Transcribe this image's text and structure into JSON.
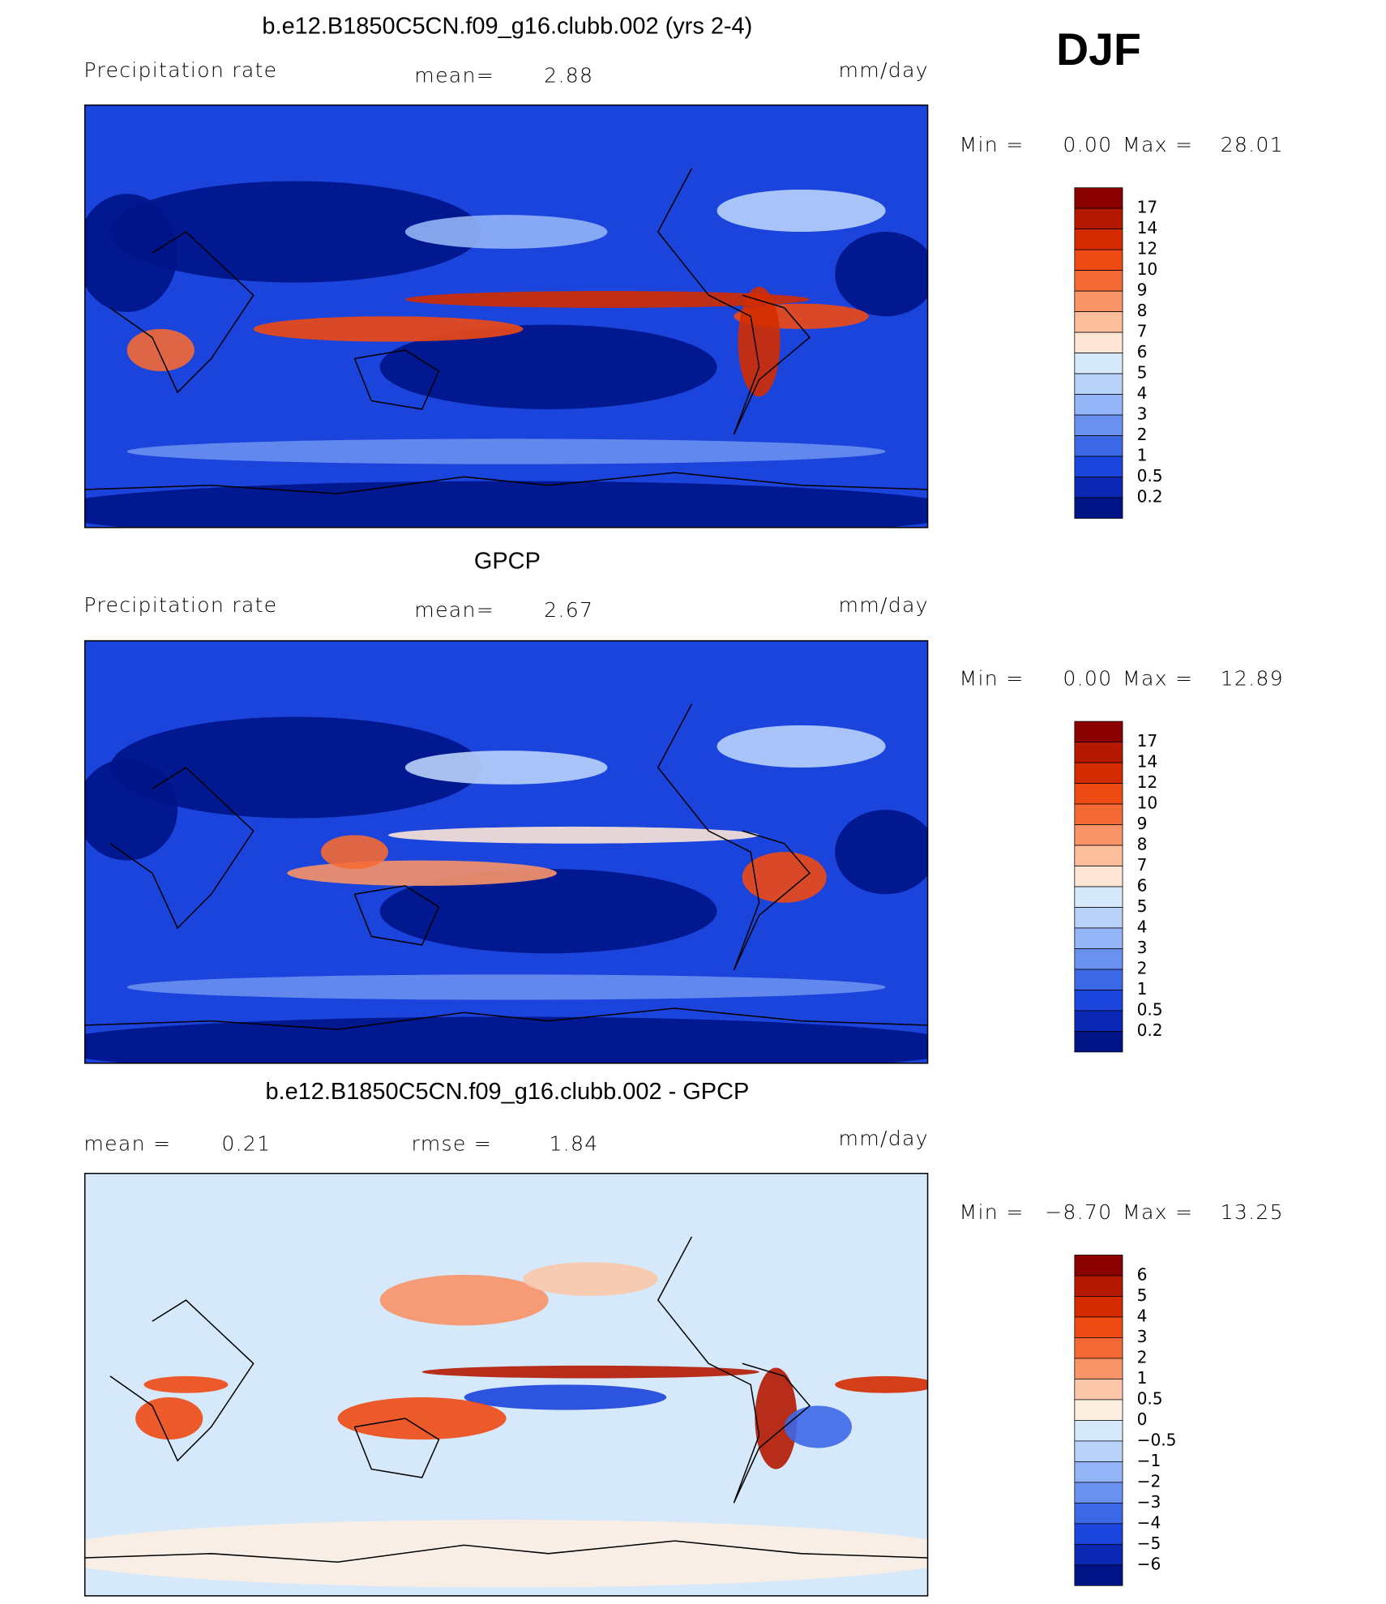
{
  "season": "DJF",
  "panels": [
    {
      "title": "b.e12.B1850C5CN.f09_g16.clubb.002 (yrs 2-4)",
      "variable": "Precipitation rate",
      "stats": [
        {
          "label": "mean=",
          "value": "2.88"
        }
      ],
      "units": "mm/day",
      "range": {
        "min_label": "Min =",
        "min": "0.00",
        "max_label": "Max =",
        "max": "28.01"
      },
      "colorbar": {
        "labels": [
          "17",
          "14",
          "12",
          "10",
          "9",
          "8",
          "7",
          "6",
          "5",
          "4",
          "3",
          "2",
          "1",
          "0.5",
          "0.2"
        ],
        "colors": [
          "#8b0000",
          "#b41800",
          "#d42c00",
          "#ee4a14",
          "#f56a34",
          "#f89468",
          "#fbbd9c",
          "#fde6d6",
          "#d6e9fb",
          "#b8d2fa",
          "#93b4f6",
          "#6a90f0",
          "#3c68e6",
          "#1a44dc",
          "#0a28b4",
          "#001488"
        ]
      }
    },
    {
      "title": "GPCP",
      "variable": "Precipitation rate",
      "stats": [
        {
          "label": "mean=",
          "value": "2.67"
        }
      ],
      "units": "mm/day",
      "range": {
        "min_label": "Min =",
        "min": "0.00",
        "max_label": "Max =",
        "max": "12.89"
      },
      "colorbar": {
        "labels": [
          "17",
          "14",
          "12",
          "10",
          "9",
          "8",
          "7",
          "6",
          "5",
          "4",
          "3",
          "2",
          "1",
          "0.5",
          "0.2"
        ],
        "colors": [
          "#8b0000",
          "#b41800",
          "#d42c00",
          "#ee4a14",
          "#f56a34",
          "#f89468",
          "#fbbd9c",
          "#fde6d6",
          "#d6e9fb",
          "#b8d2fa",
          "#93b4f6",
          "#6a90f0",
          "#3c68e6",
          "#1a44dc",
          "#0a28b4",
          "#001488"
        ]
      }
    },
    {
      "title": "b.e12.B1850C5CN.f09_g16.clubb.002 - GPCP",
      "stats": [
        {
          "label": "mean =",
          "value": "0.21"
        },
        {
          "label": "rmse =",
          "value": "1.84"
        }
      ],
      "units": "mm/day",
      "range": {
        "min_label": "Min =",
        "min": "−8.70",
        "max_label": "Max =",
        "max": "13.25"
      },
      "colorbar": {
        "labels": [
          "6",
          "5",
          "4",
          "3",
          "2",
          "1",
          "0.5",
          "0",
          "−0.5",
          "−1",
          "−2",
          "−3",
          "−4",
          "−5",
          "−6"
        ],
        "colors": [
          "#8b0000",
          "#b41800",
          "#d42c00",
          "#ee4a14",
          "#f56a34",
          "#f89468",
          "#fbc6aa",
          "#fdeee2",
          "#d6e9fb",
          "#b8d2fa",
          "#93b4f6",
          "#6a90f0",
          "#3c68e6",
          "#1a44dc",
          "#0a28b4",
          "#001488"
        ]
      }
    }
  ]
}
